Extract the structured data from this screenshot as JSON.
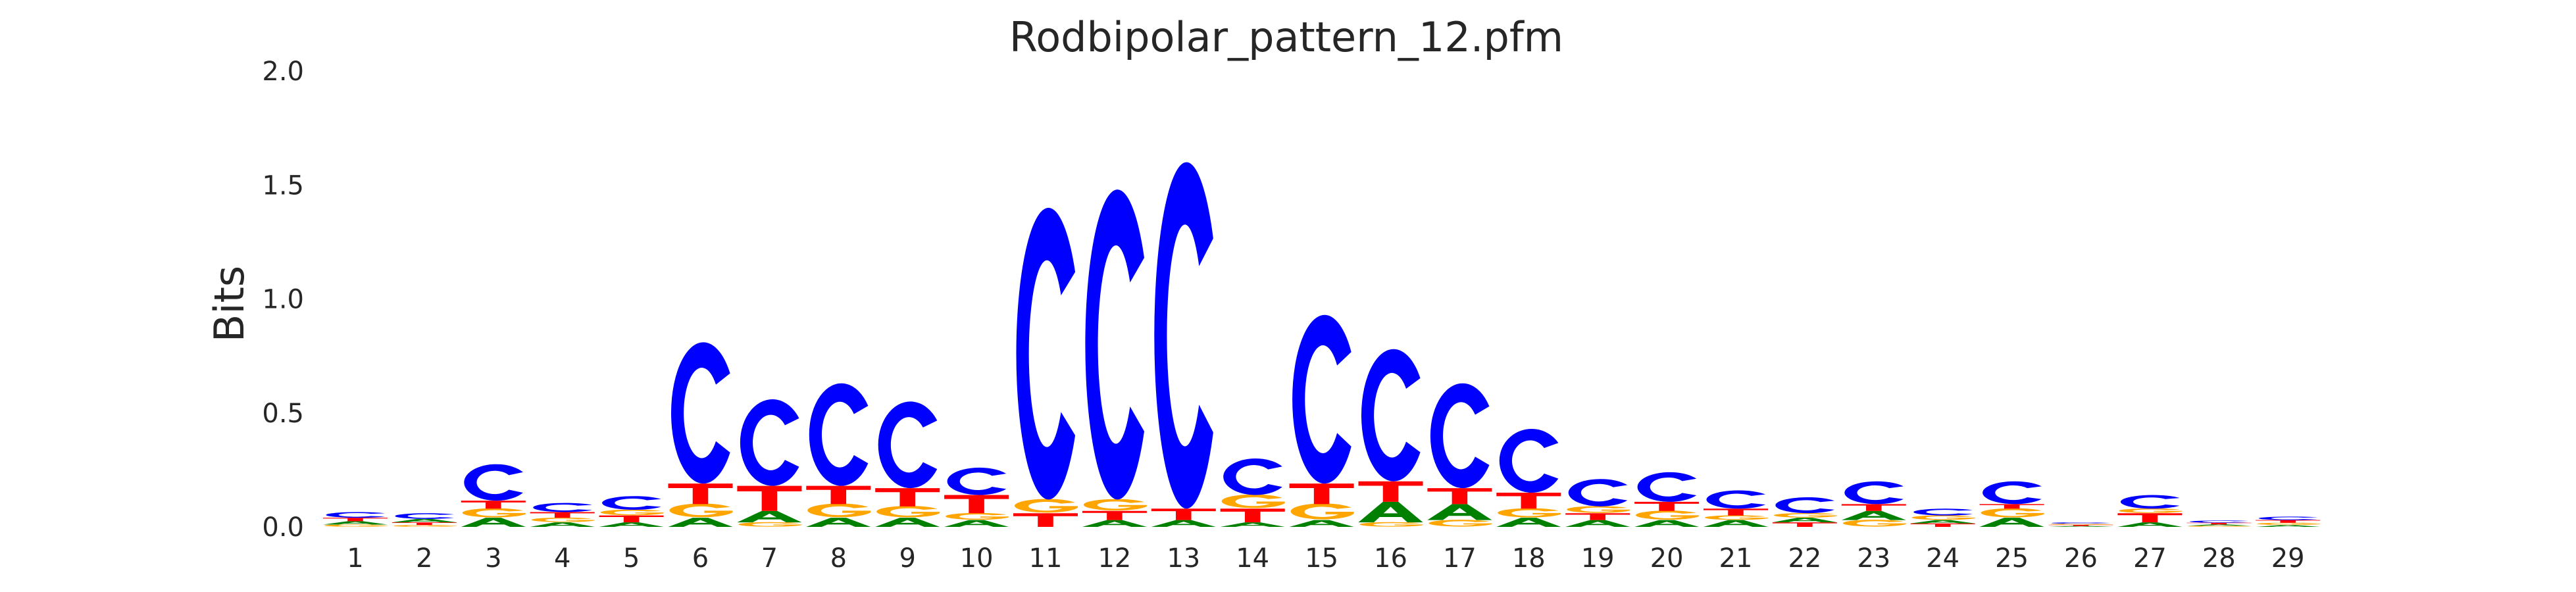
{
  "chart_data": {
    "type": "sequence-logo",
    "title": "Rodbipolar_pattern_12.pfm",
    "xlabel": "",
    "ylabel": "Bits",
    "ylim": [
      0,
      2.0
    ],
    "yticks": [
      "0.0",
      "0.5",
      "1.0",
      "1.5",
      "2.0"
    ],
    "grid": false,
    "colors": {
      "A": "#008000",
      "C": "#0000ff",
      "G": "#ffa500",
      "T": "#ff0000"
    },
    "positions": [
      {
        "pos": "1",
        "letters": [
          [
            "G",
            0.01
          ],
          [
            "A",
            0.015
          ],
          [
            "T",
            0.015
          ],
          [
            "C",
            0.025
          ]
        ]
      },
      {
        "pos": "2",
        "letters": [
          [
            "G",
            0.008
          ],
          [
            "T",
            0.012
          ],
          [
            "A",
            0.015
          ],
          [
            "C",
            0.025
          ]
        ]
      },
      {
        "pos": "3",
        "letters": [
          [
            "A",
            0.04
          ],
          [
            "G",
            0.04
          ],
          [
            "T",
            0.035
          ],
          [
            "C",
            0.16
          ]
        ]
      },
      {
        "pos": "4",
        "letters": [
          [
            "A",
            0.02
          ],
          [
            "G",
            0.02
          ],
          [
            "T",
            0.025
          ],
          [
            "C",
            0.04
          ]
        ]
      },
      {
        "pos": "5",
        "letters": [
          [
            "A",
            0.02
          ],
          [
            "T",
            0.03
          ],
          [
            "G",
            0.025
          ],
          [
            "C",
            0.06
          ]
        ]
      },
      {
        "pos": "6",
        "letters": [
          [
            "A",
            0.04
          ],
          [
            "G",
            0.06
          ],
          [
            "T",
            0.09
          ],
          [
            "C",
            0.62
          ]
        ]
      },
      {
        "pos": "7",
        "letters": [
          [
            "G",
            0.02
          ],
          [
            "A",
            0.05
          ],
          [
            "T",
            0.11
          ],
          [
            "C",
            0.38
          ]
        ]
      },
      {
        "pos": "8",
        "letters": [
          [
            "A",
            0.04
          ],
          [
            "G",
            0.06
          ],
          [
            "T",
            0.08
          ],
          [
            "C",
            0.45
          ]
        ]
      },
      {
        "pos": "9",
        "letters": [
          [
            "A",
            0.04
          ],
          [
            "G",
            0.05
          ],
          [
            "T",
            0.08
          ],
          [
            "C",
            0.38
          ]
        ]
      },
      {
        "pos": "10",
        "letters": [
          [
            "A",
            0.03
          ],
          [
            "G",
            0.03
          ],
          [
            "T",
            0.08
          ],
          [
            "C",
            0.12
          ]
        ]
      },
      {
        "pos": "11",
        "letters": [
          [
            "T",
            0.06
          ],
          [
            "G",
            0.06
          ],
          [
            "C",
            1.28
          ]
        ]
      },
      {
        "pos": "12",
        "letters": [
          [
            "A",
            0.03
          ],
          [
            "T",
            0.04
          ],
          [
            "G",
            0.05
          ],
          [
            "C",
            1.36
          ]
        ]
      },
      {
        "pos": "13",
        "letters": [
          [
            "A",
            0.03
          ],
          [
            "T",
            0.05
          ],
          [
            "C",
            1.52
          ]
        ]
      },
      {
        "pos": "14",
        "letters": [
          [
            "A",
            0.02
          ],
          [
            "T",
            0.06
          ],
          [
            "G",
            0.06
          ],
          [
            "C",
            0.16
          ]
        ]
      },
      {
        "pos": "15",
        "letters": [
          [
            "A",
            0.03
          ],
          [
            "G",
            0.07
          ],
          [
            "T",
            0.09
          ],
          [
            "C",
            0.74
          ]
        ]
      },
      {
        "pos": "16",
        "letters": [
          [
            "G",
            0.02
          ],
          [
            "A",
            0.09
          ],
          [
            "T",
            0.09
          ],
          [
            "C",
            0.58
          ]
        ]
      },
      {
        "pos": "17",
        "letters": [
          [
            "G",
            0.03
          ],
          [
            "A",
            0.07
          ],
          [
            "T",
            0.07
          ],
          [
            "C",
            0.46
          ]
        ]
      },
      {
        "pos": "18",
        "letters": [
          [
            "A",
            0.04
          ],
          [
            "G",
            0.04
          ],
          [
            "T",
            0.07
          ],
          [
            "C",
            0.28
          ]
        ]
      },
      {
        "pos": "19",
        "letters": [
          [
            "A",
            0.03
          ],
          [
            "T",
            0.03
          ],
          [
            "G",
            0.03
          ],
          [
            "C",
            0.12
          ]
        ]
      },
      {
        "pos": "20",
        "letters": [
          [
            "A",
            0.03
          ],
          [
            "G",
            0.04
          ],
          [
            "T",
            0.04
          ],
          [
            "C",
            0.13
          ]
        ]
      },
      {
        "pos": "21",
        "letters": [
          [
            "A",
            0.03
          ],
          [
            "G",
            0.02
          ],
          [
            "T",
            0.03
          ],
          [
            "C",
            0.08
          ]
        ]
      },
      {
        "pos": "22",
        "letters": [
          [
            "T",
            0.02
          ],
          [
            "A",
            0.02
          ],
          [
            "G",
            0.02
          ],
          [
            "C",
            0.07
          ]
        ]
      },
      {
        "pos": "23",
        "letters": [
          [
            "G",
            0.03
          ],
          [
            "A",
            0.04
          ],
          [
            "T",
            0.03
          ],
          [
            "C",
            0.1
          ]
        ]
      },
      {
        "pos": "24",
        "letters": [
          [
            "T",
            0.015
          ],
          [
            "A",
            0.015
          ],
          [
            "G",
            0.02
          ],
          [
            "C",
            0.03
          ]
        ]
      },
      {
        "pos": "25",
        "letters": [
          [
            "A",
            0.04
          ],
          [
            "G",
            0.04
          ],
          [
            "T",
            0.02
          ],
          [
            "C",
            0.1
          ]
        ]
      },
      {
        "pos": "26",
        "letters": [
          [
            "A",
            0.004
          ],
          [
            "T",
            0.005
          ],
          [
            "G",
            0.005
          ],
          [
            "C",
            0.006
          ]
        ]
      },
      {
        "pos": "27",
        "letters": [
          [
            "A",
            0.02
          ],
          [
            "T",
            0.04
          ],
          [
            "G",
            0.02
          ],
          [
            "C",
            0.06
          ]
        ]
      },
      {
        "pos": "28",
        "letters": [
          [
            "G",
            0.005
          ],
          [
            "A",
            0.006
          ],
          [
            "T",
            0.007
          ],
          [
            "C",
            0.01
          ]
        ]
      },
      {
        "pos": "29",
        "letters": [
          [
            "A",
            0.008
          ],
          [
            "G",
            0.01
          ],
          [
            "T",
            0.012
          ],
          [
            "C",
            0.015
          ]
        ]
      }
    ]
  }
}
